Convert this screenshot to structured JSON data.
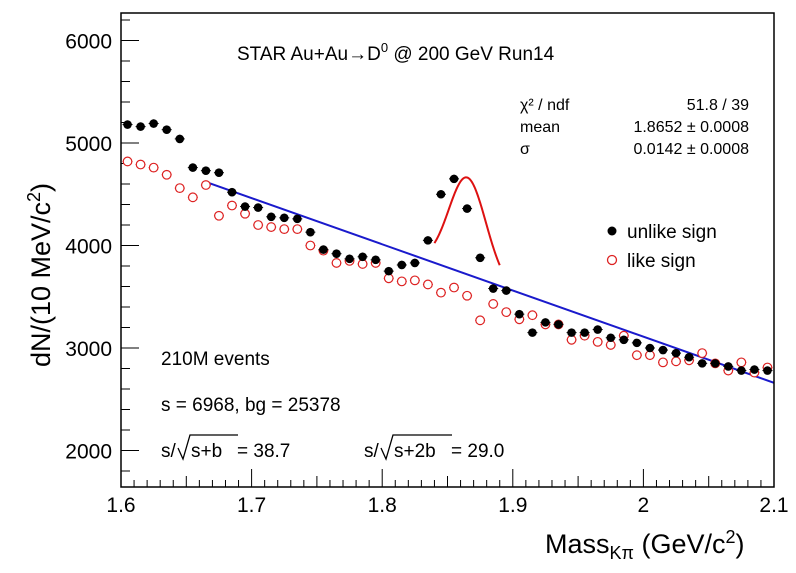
{
  "chart_data": {
    "type": "scatter",
    "title": "STAR Au+Au→D⁰ @ 200 GeV Run14",
    "title_parts": {
      "pre": "STAR Au+Au",
      "arrow": "→",
      "particle": "D",
      "sup": "0",
      "post": " @ 200 GeV Run14"
    },
    "xlabel": {
      "main": "Mass",
      "sub": "Kπ",
      "unit_pre": " (GeV/c",
      "unit_sup": "2",
      "unit_post": ")"
    },
    "ylabel": {
      "main": "dN/(10 MeV/c",
      "sup": "2",
      "post": ")"
    },
    "xlim": [
      1.6,
      2.1
    ],
    "ylim": [
      1700,
      6300
    ],
    "xticks": [
      1.6,
      1.7,
      1.8,
      1.9,
      2.0,
      2.1
    ],
    "xtick_labels": [
      "1.6",
      "1.7",
      "1.8",
      "1.9",
      "2",
      "2.1"
    ],
    "yticks": [
      2000,
      3000,
      4000,
      5000,
      6000
    ],
    "ytick_labels": [
      "2000",
      "3000",
      "4000",
      "5000",
      "6000"
    ],
    "legend": {
      "position": "right",
      "entries": [
        {
          "label": "unlike sign",
          "marker": "filled-circle",
          "color": "#000000"
        },
        {
          "label": "like sign",
          "marker": "open-circle",
          "color": "#dd2222"
        }
      ]
    },
    "fit_stats": [
      {
        "label": "χ² / ndf",
        "value": "51.8 / 39"
      },
      {
        "label": "mean",
        "value": "1.8652 ± 0.0008"
      },
      {
        "label": "σ",
        "value": "0.0142 ± 0.0008"
      }
    ],
    "annotations": {
      "events": "210M events",
      "counts": "s = 6968,  bg = 25378",
      "sig1_pre": "s/",
      "sig1_rad": "s+b",
      "sig1_post": " = 38.7",
      "sig2_pre": "s/",
      "sig2_rad": "s+2b",
      "sig2_post": " = 29.0"
    },
    "series": [
      {
        "name": "unlike sign",
        "color": "#000000",
        "x": [
          1.605,
          1.615,
          1.625,
          1.635,
          1.645,
          1.655,
          1.665,
          1.675,
          1.685,
          1.695,
          1.705,
          1.715,
          1.725,
          1.735,
          1.745,
          1.755,
          1.765,
          1.775,
          1.785,
          1.795,
          1.805,
          1.815,
          1.825,
          1.835,
          1.845,
          1.855,
          1.865,
          1.875,
          1.885,
          1.895,
          1.905,
          1.915,
          1.925,
          1.935,
          1.945,
          1.955,
          1.965,
          1.975,
          1.985,
          1.995,
          2.005,
          2.015,
          2.025,
          2.035,
          2.045,
          2.055,
          2.065,
          2.075,
          2.085,
          2.095
        ],
        "y": [
          5180,
          5160,
          5190,
          5130,
          5040,
          4760,
          4730,
          4710,
          4520,
          4380,
          4370,
          4280,
          4270,
          4260,
          4130,
          3960,
          3920,
          3870,
          3890,
          3860,
          3750,
          3810,
          3830,
          4050,
          4500,
          4650,
          4360,
          3880,
          3580,
          3560,
          3330,
          3150,
          3250,
          3230,
          3150,
          3150,
          3180,
          3100,
          3080,
          3050,
          3000,
          2980,
          2950,
          2910,
          2850,
          2850,
          2820,
          2780,
          2790,
          2780
        ],
        "err": [
          40,
          40,
          40,
          40,
          40,
          40,
          40,
          40,
          40,
          40,
          40,
          40,
          40,
          40,
          40,
          40,
          40,
          40,
          40,
          40,
          40,
          40,
          40,
          40,
          40,
          40,
          40,
          40,
          40,
          40,
          35,
          35,
          35,
          35,
          35,
          35,
          35,
          35,
          35,
          35,
          35,
          35,
          35,
          35,
          35,
          35,
          35,
          35,
          35,
          35
        ]
      },
      {
        "name": "like sign",
        "color": "#dd2222",
        "x": [
          1.605,
          1.615,
          1.625,
          1.635,
          1.645,
          1.655,
          1.665,
          1.675,
          1.685,
          1.695,
          1.705,
          1.715,
          1.725,
          1.735,
          1.745,
          1.755,
          1.765,
          1.775,
          1.785,
          1.795,
          1.805,
          1.815,
          1.825,
          1.835,
          1.845,
          1.855,
          1.865,
          1.875,
          1.885,
          1.895,
          1.905,
          1.915,
          1.925,
          1.935,
          1.945,
          1.955,
          1.965,
          1.975,
          1.985,
          1.995,
          2.005,
          2.015,
          2.025,
          2.035,
          2.045,
          2.055,
          2.065,
          2.075,
          2.085,
          2.095
        ],
        "y": [
          4820,
          4790,
          4760,
          4690,
          4560,
          4470,
          4590,
          4290,
          4390,
          4310,
          4200,
          4180,
          4160,
          4160,
          4000,
          3950,
          3830,
          3850,
          3820,
          3830,
          3680,
          3650,
          3660,
          3620,
          3540,
          3590,
          3510,
          3270,
          3430,
          3350,
          3280,
          3320,
          3230,
          3230,
          3080,
          3120,
          3060,
          3030,
          3120,
          2930,
          2930,
          2860,
          2870,
          2880,
          2950,
          2850,
          2780,
          2860,
          2760,
          2810
        ],
        "err": [
          40,
          40,
          40,
          40,
          40,
          40,
          40,
          40,
          40,
          40,
          40,
          40,
          40,
          40,
          40,
          40,
          40,
          40,
          40,
          40,
          40,
          40,
          40,
          40,
          40,
          40,
          40,
          40,
          40,
          40,
          35,
          35,
          35,
          35,
          35,
          35,
          35,
          35,
          35,
          35,
          35,
          35,
          35,
          35,
          35,
          35,
          35,
          35,
          35,
          35
        ]
      }
    ],
    "fits": [
      {
        "name": "signal fit",
        "color": "#dd1111",
        "type": "gauss-plus-linear",
        "mean": 1.8652,
        "sigma": 0.0142,
        "amplitude": 950,
        "range": [
          1.84,
          1.89
        ]
      },
      {
        "name": "background fit",
        "color": "#1a1acc",
        "type": "linear",
        "range": [
          1.665,
          2.1
        ],
        "y_start": 4620,
        "y_end": 2660
      }
    ]
  }
}
